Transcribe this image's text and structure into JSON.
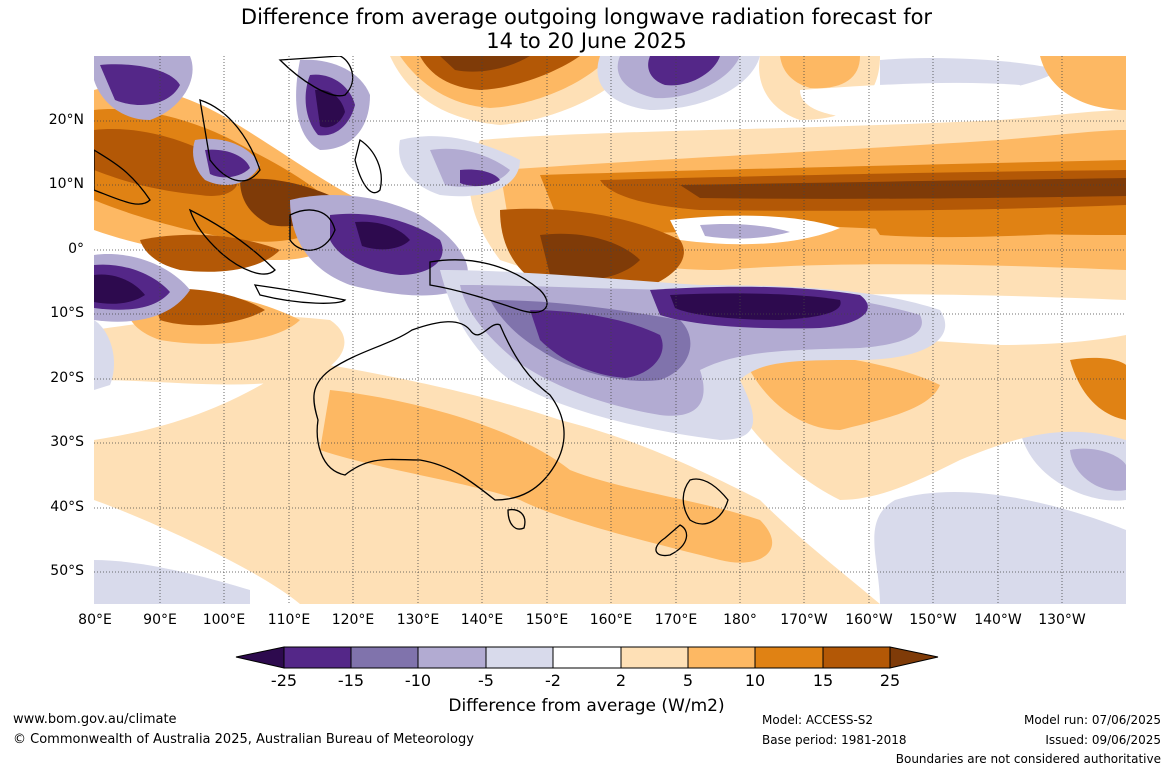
{
  "title": {
    "line1": "Difference from average outgoing longwave radiation forecast for",
    "line2": "14 to 20 June 2025"
  },
  "map": {
    "region": "Australia, Maritime Continent and South-West Pacific",
    "longitude_labels": [
      "80°E",
      "90°E",
      "100°E",
      "110°E",
      "120°E",
      "130°E",
      "140°E",
      "150°E",
      "160°E",
      "170°E",
      "180°",
      "170°W",
      "160°W",
      "150°W",
      "140°W",
      "130°W"
    ],
    "latitude_labels": [
      "20°N",
      "10°N",
      "0°",
      "10°S",
      "20°S",
      "30°S",
      "40°S",
      "50°S"
    ],
    "longitude_range": [
      80,
      240
    ],
    "latitude_range": [
      -55,
      30
    ],
    "gridlines": "dotted"
  },
  "colorbar": {
    "ticks": [
      "-25",
      "-15",
      "-10",
      "-5",
      "-2",
      "2",
      "5",
      "10",
      "15",
      "25"
    ],
    "bins": [
      {
        "range": "< -25",
        "color": "#2d0a4e"
      },
      {
        "range": "-25 to -15",
        "color": "#542788"
      },
      {
        "range": "-15 to -10",
        "color": "#8073ac"
      },
      {
        "range": "-10 to -5",
        "color": "#b2abd2"
      },
      {
        "range": "-5 to -2",
        "color": "#d8daeb"
      },
      {
        "range": "-2 to 2",
        "color": "#ffffff"
      },
      {
        "range": "2 to 5",
        "color": "#fee0b6"
      },
      {
        "range": "5 to 10",
        "color": "#fdb863"
      },
      {
        "range": "10 to 15",
        "color": "#e08214"
      },
      {
        "range": "15 to 25",
        "color": "#b35806"
      },
      {
        "range": "> 25",
        "color": "#7f3b08"
      }
    ],
    "title": "Difference from average (W/m2)"
  },
  "footer": {
    "url": "www.bom.gov.au/climate",
    "copyright": "© Commonwealth of Australia 2025, Australian Bureau of Meteorology",
    "model": "Model: ACCESS-S2",
    "base_period": "Base period: 1981-2018",
    "model_run": "Model run: 07/06/2025",
    "issued": "Issued: 09/06/2025",
    "disclaimer": "Boundaries are not considered authoritative"
  }
}
